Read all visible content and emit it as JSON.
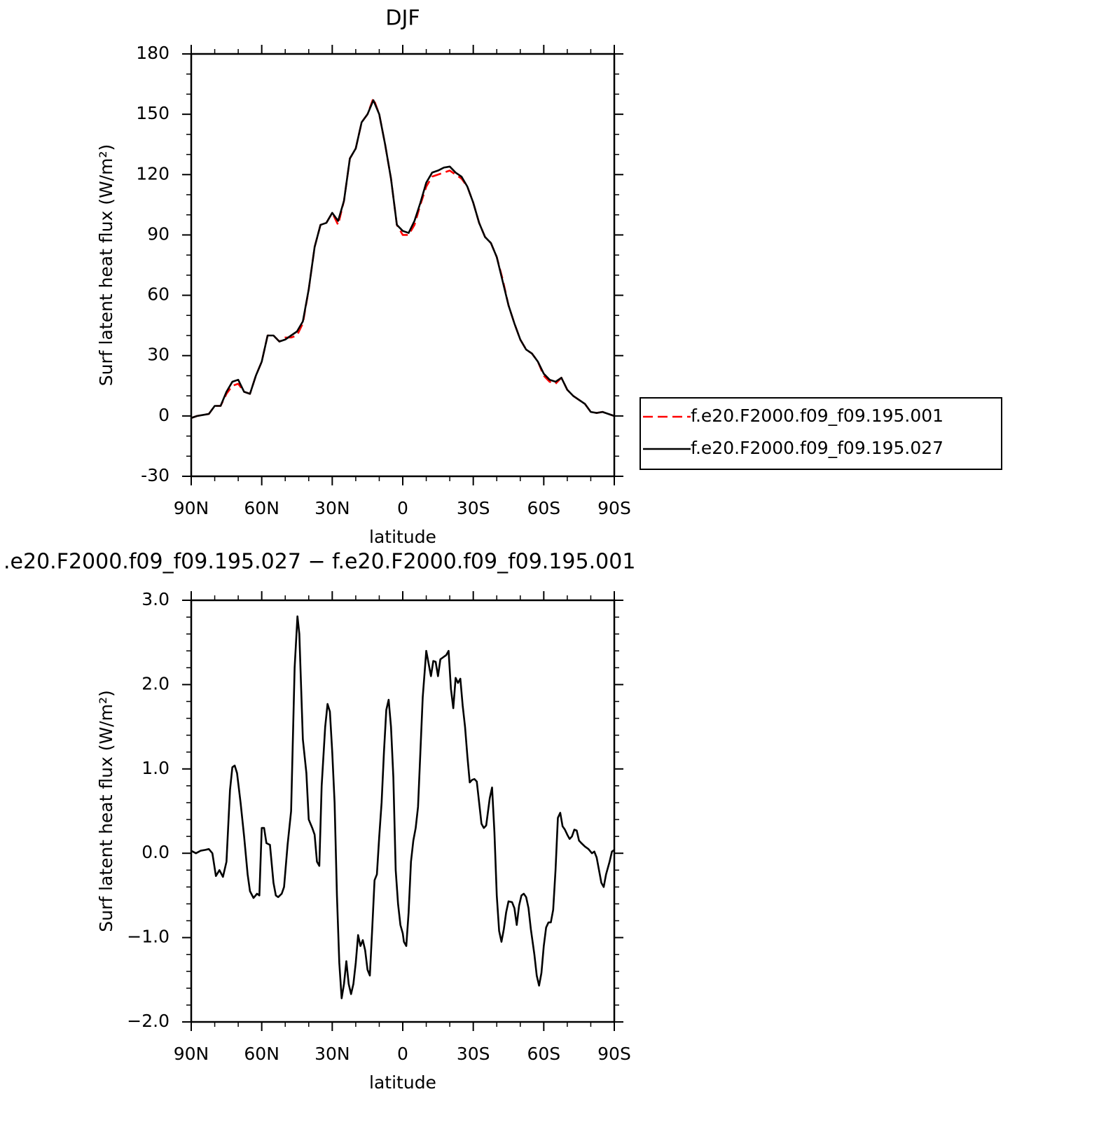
{
  "chart_data": [
    {
      "type": "line",
      "title": "DJF",
      "x_label": "latitude",
      "y_label": "Surf latent heat flux (W/m²)",
      "xlim": [
        90,
        -90
      ],
      "xticks": [
        {
          "value": 90,
          "label": "90N"
        },
        {
          "value": 60,
          "label": "60N"
        },
        {
          "value": 30,
          "label": "30N"
        },
        0,
        {
          "value": -30,
          "label": "30S"
        },
        {
          "value": -60,
          "label": "60S"
        },
        {
          "value": -90,
          "label": "90S"
        }
      ],
      "ylim": [
        -30,
        180
      ],
      "yticks": [
        -30,
        0,
        30,
        60,
        90,
        120,
        150,
        180
      ],
      "legend": "outside-right",
      "grid": false,
      "x": [
        90,
        87.5,
        85,
        82.5,
        80,
        77.5,
        75,
        72.5,
        70,
        67.5,
        65,
        62.5,
        60,
        57.5,
        55,
        52.5,
        50,
        47.5,
        45,
        42.5,
        40,
        37.5,
        35,
        32.5,
        30,
        27.5,
        25,
        22.5,
        20,
        17.5,
        15,
        12.5,
        10,
        7.5,
        5,
        2.5,
        0,
        -2.5,
        -5,
        -7.5,
        -10,
        -12.5,
        -15,
        -17.5,
        -20,
        -22.5,
        -25,
        -27.5,
        -30,
        -32.5,
        -35,
        -37.5,
        -40,
        -42.5,
        -45,
        -47.5,
        -50,
        -52.5,
        -55,
        -57.5,
        -60,
        -62.5,
        -65,
        -67.5,
        -70,
        -72.5,
        -75,
        -77.5,
        -80,
        -82.5,
        -85,
        -87.5,
        -90
      ],
      "series": [
        {
          "name": "f.e20.F2000.f09_f09.195.001",
          "color": "#ff0000",
          "line_style": "dashed",
          "values": [
            -1,
            0,
            0.5,
            1,
            5,
            5,
            11,
            15,
            16,
            12,
            11,
            20,
            27,
            40,
            40,
            37,
            39,
            39,
            40,
            46,
            63,
            84,
            95,
            96,
            101,
            95,
            107,
            128,
            133,
            146,
            150,
            158,
            150,
            135,
            118,
            95,
            90,
            90,
            95,
            105,
            114,
            119,
            120,
            121,
            122,
            120,
            118,
            114,
            106,
            96,
            89,
            86,
            79,
            68,
            55,
            46,
            38,
            33,
            31,
            27,
            20,
            17,
            16,
            19,
            13,
            10,
            8,
            6,
            2,
            1.5,
            2,
            1,
            0
          ]
        },
        {
          "name": "f.e20.F2000.f09_f09.195.027",
          "color": "#000000",
          "line_style": "solid",
          "values": [
            -1,
            0,
            0.5,
            1,
            5,
            5,
            12,
            17,
            18,
            12,
            11,
            20,
            27,
            40,
            40,
            37,
            38,
            40,
            42,
            47,
            63,
            84,
            95,
            96,
            101,
            97,
            107,
            128,
            133,
            146,
            150,
            157,
            150,
            135,
            118,
            95,
            92,
            91,
            97,
            106,
            116,
            121,
            122,
            123.5,
            124,
            121,
            119,
            114,
            106,
            96,
            89,
            86,
            79,
            67,
            55,
            46,
            38,
            33,
            31,
            27,
            21,
            18,
            17,
            19,
            13,
            10,
            8,
            6,
            2,
            1.5,
            2,
            1,
            0
          ]
        }
      ]
    },
    {
      "type": "line",
      "title": ".e20.F2000.f09_f09.195.027 − f.e20.F2000.f09_f09.195.001",
      "x_label": "latitude",
      "y_label": "Surf latent heat flux (W/m²)",
      "xlim": [
        90,
        -90
      ],
      "xticks": [
        {
          "value": 90,
          "label": "90N"
        },
        {
          "value": 60,
          "label": "60N"
        },
        {
          "value": 30,
          "label": "30N"
        },
        0,
        {
          "value": -30,
          "label": "30S"
        },
        {
          "value": -60,
          "label": "60S"
        },
        {
          "value": -90,
          "label": "90S"
        }
      ],
      "ylim": [
        -2,
        3
      ],
      "yticks": [
        {
          "value": -2,
          "label": "−2.0"
        },
        {
          "value": -1,
          "label": "−1.0"
        },
        {
          "value": 0,
          "label": "0.0"
        },
        {
          "value": 1,
          "label": "1.0"
        },
        {
          "value": 2,
          "label": "2.0"
        },
        {
          "value": 3,
          "label": "3.0"
        }
      ],
      "grid": false,
      "x": [
        90,
        88,
        86,
        84,
        82.5,
        81,
        79.5,
        78,
        76.5,
        75,
        73.5,
        72.5,
        71.5,
        70.5,
        69,
        67.5,
        66,
        65,
        63.5,
        62,
        61,
        60,
        59,
        58,
        56.5,
        55,
        54,
        53,
        51.5,
        50.5,
        49,
        47.5,
        46,
        44.8,
        44,
        42.5,
        41,
        40,
        38.5,
        37.5,
        36.5,
        35.5,
        34.5,
        33,
        32,
        31,
        30,
        29,
        28,
        27,
        26,
        25,
        24,
        23,
        22,
        21,
        20,
        19,
        18,
        17,
        16,
        15,
        14,
        13,
        12,
        11,
        10,
        9,
        8,
        7,
        6,
        5,
        4,
        3,
        2,
        1,
        0,
        -0.5,
        -1.5,
        -2.5,
        -3.5,
        -4.5,
        -5.5,
        -6.5,
        -7.5,
        -8.5,
        -10,
        -11,
        -12,
        -13,
        -14,
        -15,
        -16,
        -17,
        -18.5,
        -19.5,
        -20.5,
        -21.5,
        -22.5,
        -23.5,
        -24.5,
        -25.5,
        -26.5,
        -27.5,
        -28.5,
        -29.5,
        -30.5,
        -31.5,
        -32.5,
        -33.5,
        -34.5,
        -35.5,
        -37,
        -38,
        -39,
        -40,
        -41,
        -42,
        -43,
        -44,
        -45,
        -46.5,
        -47.5,
        -48.5,
        -49.5,
        -50.5,
        -51.5,
        -52.5,
        -53.5,
        -54.5,
        -56,
        -57,
        -58,
        -59,
        -60,
        -61,
        -62,
        -63,
        -64,
        -65,
        -66,
        -67,
        -68,
        -69,
        -70,
        -71,
        -72,
        -73,
        -74,
        -75,
        -76,
        -77.5,
        -79,
        -80.5,
        -81.5,
        -82.5,
        -83.5,
        -84.5,
        -85.5,
        -86.5,
        -88,
        -89,
        -90
      ],
      "series": [
        {
          "color": "#000000",
          "line_style": "solid",
          "values": [
            0.03,
            0,
            0.03,
            0.04,
            0.05,
            0,
            -0.27,
            -0.2,
            -0.28,
            -0.1,
            0.75,
            1.02,
            1.04,
            0.95,
            0.6,
            0.2,
            -0.25,
            -0.45,
            -0.53,
            -0.48,
            -0.5,
            0.3,
            0.3,
            0.12,
            0.1,
            -0.35,
            -0.5,
            -0.52,
            -0.48,
            -0.4,
            0.1,
            0.5,
            2.2,
            2.81,
            2.6,
            1.35,
            0.95,
            0.4,
            0.3,
            0.22,
            -0.1,
            -0.15,
            0.8,
            1.5,
            1.77,
            1.68,
            1.2,
            0.6,
            -0.5,
            -1.3,
            -1.72,
            -1.55,
            -1.28,
            -1.55,
            -1.67,
            -1.55,
            -1.3,
            -0.97,
            -1.1,
            -1.03,
            -1.15,
            -1.38,
            -1.45,
            -0.9,
            -0.32,
            -0.25,
            0.2,
            0.6,
            1.2,
            1.7,
            1.82,
            1.5,
            0.9,
            -0.2,
            -0.6,
            -0.85,
            -0.95,
            -1.05,
            -1.1,
            -0.7,
            -0.1,
            0.15,
            0.3,
            0.55,
            1.2,
            1.85,
            2.4,
            2.25,
            2.1,
            2.28,
            2.27,
            2.1,
            2.3,
            2.32,
            2.35,
            2.4,
            1.95,
            1.72,
            2.08,
            2.02,
            2.07,
            1.75,
            1.5,
            1.15,
            0.84,
            0.87,
            0.88,
            0.85,
            0.6,
            0.35,
            0.3,
            0.33,
            0.65,
            0.78,
            0.25,
            -0.5,
            -0.92,
            -1.05,
            -0.9,
            -0.7,
            -0.57,
            -0.58,
            -0.65,
            -0.85,
            -0.62,
            -0.5,
            -0.48,
            -0.52,
            -0.65,
            -0.9,
            -1.2,
            -1.45,
            -1.57,
            -1.42,
            -1.1,
            -0.88,
            -0.82,
            -0.82,
            -0.67,
            -0.2,
            0.42,
            0.48,
            0.32,
            0.28,
            0.22,
            0.17,
            0.2,
            0.28,
            0.27,
            0.15,
            0.12,
            0.08,
            0.05,
            0,
            0.02,
            -0.05,
            -0.2,
            -0.35,
            -0.4,
            -0.25,
            -0.1,
            0.02,
            0.04
          ]
        }
      ]
    }
  ]
}
